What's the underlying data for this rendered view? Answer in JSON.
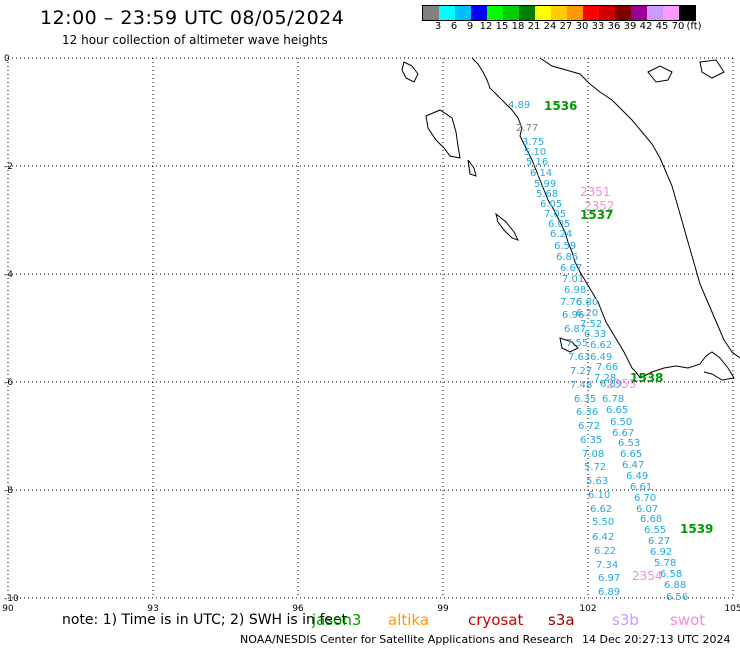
{
  "header": {
    "title": "12:00 – 23:59 UTC 08/05/2024",
    "subtitle": "12 hour collection of altimeter wave heights"
  },
  "legend": {
    "colors": [
      "#808080",
      "#00ffff",
      "#00bfff",
      "#0000ff",
      "#00ff00",
      "#00cc00",
      "#008000",
      "#ffff00",
      "#ffcc00",
      "#ff9900",
      "#ff0000",
      "#cc0000",
      "#800000",
      "#990099",
      "#cc99ff",
      "#ff99ff",
      "#000000"
    ],
    "labels": [
      "3",
      "6",
      "9",
      "12",
      "15",
      "18",
      "21",
      "24",
      "27",
      "30",
      "33",
      "36",
      "39",
      "42",
      "45",
      "70",
      "(ft)"
    ]
  },
  "map": {
    "lon_ticks": [
      "90",
      "93",
      "96",
      "99",
      "102",
      "105"
    ],
    "lat_ticks": [
      "0",
      "-2",
      "-4",
      "-6",
      "-8",
      "-10"
    ],
    "colors": {
      "cyan": "#22aadd",
      "gray": "#808080",
      "green": "#009900",
      "pink": "#ff88dd"
    },
    "track_labels": [
      {
        "t": "4.89",
        "c": "cyan"
      },
      {
        "t": "2.77",
        "c": "gray"
      },
      {
        "t": "3.75",
        "c": "cyan"
      },
      {
        "t": "5.10",
        "c": "cyan"
      },
      {
        "t": "5.16",
        "c": "cyan"
      },
      {
        "t": "6.14",
        "c": "cyan"
      },
      {
        "t": "5.99",
        "c": "cyan"
      },
      {
        "t": "5.68",
        "c": "cyan"
      },
      {
        "t": "6.05",
        "c": "cyan"
      },
      {
        "t": "7.05",
        "c": "cyan"
      },
      {
        "t": "6.05",
        "c": "cyan"
      },
      {
        "t": "6.24",
        "c": "cyan"
      },
      {
        "t": "6.59",
        "c": "cyan"
      },
      {
        "t": "6.86",
        "c": "cyan"
      },
      {
        "t": "6.67",
        "c": "cyan"
      },
      {
        "t": "7.01",
        "c": "cyan"
      },
      {
        "t": "6.98",
        "c": "cyan"
      },
      {
        "t": "7.76",
        "c": "cyan"
      },
      {
        "t": "6.80",
        "c": "cyan"
      },
      {
        "t": "6.96",
        "c": "cyan"
      },
      {
        "t": "6.20",
        "c": "cyan"
      },
      {
        "t": "6.87",
        "c": "cyan"
      },
      {
        "t": "7.52",
        "c": "cyan"
      },
      {
        "t": "6.33",
        "c": "cyan"
      },
      {
        "t": "7.55",
        "c": "cyan"
      },
      {
        "t": "6.62",
        "c": "cyan"
      },
      {
        "t": "7.63",
        "c": "cyan"
      },
      {
        "t": "6.49",
        "c": "cyan"
      },
      {
        "t": "7.27",
        "c": "cyan"
      },
      {
        "t": "7.66",
        "c": "cyan"
      },
      {
        "t": "7.28",
        "c": "cyan"
      },
      {
        "t": "7.48",
        "c": "cyan"
      },
      {
        "t": "6.89",
        "c": "cyan"
      },
      {
        "t": "6.35",
        "c": "cyan"
      },
      {
        "t": "6.78",
        "c": "cyan"
      },
      {
        "t": "6.36",
        "c": "cyan"
      },
      {
        "t": "6.65",
        "c": "cyan"
      },
      {
        "t": "6.72",
        "c": "cyan"
      },
      {
        "t": "6.50",
        "c": "cyan"
      },
      {
        "t": "6.35",
        "c": "cyan"
      },
      {
        "t": "6.67",
        "c": "cyan"
      },
      {
        "t": "6.53",
        "c": "cyan"
      },
      {
        "t": "7.08",
        "c": "cyan"
      },
      {
        "t": "6.65",
        "c": "cyan"
      },
      {
        "t": "5.72",
        "c": "cyan"
      },
      {
        "t": "6.47",
        "c": "cyan"
      },
      {
        "t": "6.49",
        "c": "cyan"
      },
      {
        "t": "5.63",
        "c": "cyan"
      },
      {
        "t": "6.61",
        "c": "cyan"
      },
      {
        "t": "6.10",
        "c": "cyan"
      },
      {
        "t": "6.70",
        "c": "cyan"
      },
      {
        "t": "6.62",
        "c": "cyan"
      },
      {
        "t": "6.07",
        "c": "cyan"
      },
      {
        "t": "6.68",
        "c": "cyan"
      },
      {
        "t": "5.50",
        "c": "cyan"
      },
      {
        "t": "6.55",
        "c": "cyan"
      },
      {
        "t": "6.42",
        "c": "cyan"
      },
      {
        "t": "6.27",
        "c": "cyan"
      },
      {
        "t": "6.22",
        "c": "cyan"
      },
      {
        "t": "6.92",
        "c": "cyan"
      },
      {
        "t": "7.34",
        "c": "cyan"
      },
      {
        "t": "5.78",
        "c": "cyan"
      },
      {
        "t": "6.97",
        "c": "cyan"
      },
      {
        "t": "6.58",
        "c": "cyan"
      },
      {
        "t": "6.89",
        "c": "cyan"
      },
      {
        "t": "6.88",
        "c": "cyan"
      },
      {
        "t": "6.56",
        "c": "cyan"
      },
      {
        "t": "2351",
        "c": "pink"
      },
      {
        "t": "2352",
        "c": "pink"
      },
      {
        "t": "2353",
        "c": "pink"
      },
      {
        "t": "2354",
        "c": "pink"
      },
      {
        "t": "1536",
        "c": "green"
      },
      {
        "t": "1537",
        "c": "green"
      },
      {
        "t": "1538",
        "c": "green"
      },
      {
        "t": "1539",
        "c": "green"
      }
    ]
  },
  "footer": {
    "note": "note:  1) Time is in UTC;  2) SWH is in feet",
    "missions": [
      {
        "name": "jason3",
        "color": "#009900"
      },
      {
        "name": "altika",
        "color": "#ff9900"
      },
      {
        "name": "cryosat",
        "color": "#cc0000"
      },
      {
        "name": "s3a",
        "color": "#990000"
      },
      {
        "name": "s3b",
        "color": "#cc99ff"
      },
      {
        "name": "swot",
        "color": "#ff88dd"
      }
    ],
    "credit": "NOAA/NESDIS Center for Satellite Applications and Research",
    "timestamp": "14 Dec 20:27:13 UTC 2024"
  }
}
